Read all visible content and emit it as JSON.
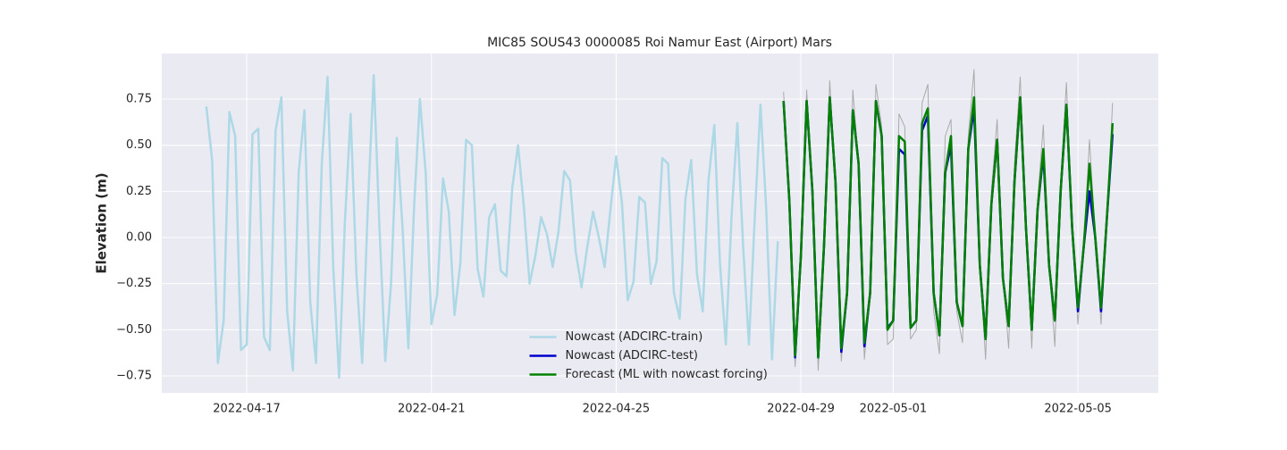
{
  "chart_data": {
    "type": "line",
    "title": "MIC85 SOUS43 0000085 Roi Namur East (Airport) Mars",
    "y_label": "Elevation (m)",
    "xlim": [
      19097.16,
      19118.74
    ],
    "ylim": [
      -0.842,
      0.997
    ],
    "xticks": [
      {
        "value": 19099,
        "label": "2022-04-17"
      },
      {
        "value": 19103,
        "label": "2022-04-21"
      },
      {
        "value": 19107,
        "label": "2022-04-25"
      },
      {
        "value": 19111,
        "label": "2022-04-29"
      },
      {
        "value": 19113,
        "label": "2022-05-01"
      },
      {
        "value": 19117,
        "label": "2022-05-05"
      }
    ],
    "yticks": [
      {
        "value": 0.75,
        "label": "0.75"
      },
      {
        "value": 0.5,
        "label": "0.50"
      },
      {
        "value": 0.25,
        "label": "0.25"
      },
      {
        "value": 0,
        "label": "0.00"
      },
      {
        "value": -0.25,
        "label": "−0.25"
      },
      {
        "value": -0.5,
        "label": "−0.50"
      },
      {
        "value": -0.75,
        "label": "−0.75"
      }
    ],
    "grid": true,
    "legend": "lower center",
    "series": [
      {
        "color": "#aaaaaa",
        "width": 1,
        "x": [
          19110.625,
          19110.75,
          19110.875,
          19111,
          19111.125,
          19111.25,
          19111.375,
          19111.5,
          19111.625,
          19111.75,
          19111.875,
          19112,
          19112.125,
          19112.25,
          19112.375,
          19112.5,
          19112.625,
          19112.75,
          19112.875,
          19113,
          19113.125,
          19113.25,
          19113.375,
          19113.5,
          19113.625,
          19113.75,
          19113.875,
          19114,
          19114.125,
          19114.25,
          19114.375,
          19114.5,
          19114.625,
          19114.75,
          19114.875,
          19115,
          19115.125,
          19115.25,
          19115.375,
          19115.5,
          19115.625,
          19115.75,
          19115.875,
          19116,
          19116.125,
          19116.25,
          19116.375,
          19116.5,
          19116.625,
          19116.75,
          19116.875,
          19117,
          19117.125,
          19117.25,
          19117.375,
          19117.5,
          19117.625,
          19117.75
        ],
        "values": [
          0.79,
          0.2,
          -0.7,
          -0.1,
          0.8,
          0.25,
          -0.72,
          -0.05,
          0.85,
          0.3,
          -0.67,
          -0.3,
          0.8,
          0.4,
          -0.66,
          -0.3,
          0.83,
          0.6,
          -0.58,
          -0.55,
          0.67,
          0.6,
          -0.55,
          -0.5,
          0.73,
          0.83,
          -0.4,
          -0.63,
          0.55,
          0.64,
          -0.4,
          -0.57,
          0.55,
          0.91,
          -0.15,
          -0.66,
          0.25,
          0.64,
          -0.22,
          -0.6,
          0.4,
          0.87,
          0.05,
          -0.6,
          0.2,
          0.61,
          -0.15,
          -0.59,
          0.3,
          0.84,
          0.05,
          -0.47,
          -0.05,
          0.53,
          0.0,
          -0.47,
          0.1,
          0.73
        ]
      },
      {
        "name": "Nowcast (ADCIRC-train)",
        "color": "#add8e6",
        "width": 2.5,
        "x": [
          19098.125,
          19098.25,
          19098.375,
          19098.5,
          19098.625,
          19098.75,
          19098.875,
          19099,
          19099.125,
          19099.25,
          19099.375,
          19099.5,
          19099.625,
          19099.75,
          19099.875,
          19100,
          19100.125,
          19100.25,
          19100.375,
          19100.5,
          19100.625,
          19100.75,
          19100.875,
          19101,
          19101.125,
          19101.25,
          19101.375,
          19101.5,
          19101.625,
          19101.75,
          19101.875,
          19102,
          19102.125,
          19102.25,
          19102.375,
          19102.5,
          19102.625,
          19102.75,
          19102.875,
          19103,
          19103.125,
          19103.25,
          19103.375,
          19103.5,
          19103.625,
          19103.75,
          19103.875,
          19104,
          19104.125,
          19104.25,
          19104.375,
          19104.5,
          19104.625,
          19104.75,
          19104.875,
          19105,
          19105.125,
          19105.25,
          19105.375,
          19105.5,
          19105.625,
          19105.75,
          19105.875,
          19106,
          19106.125,
          19106.25,
          19106.375,
          19106.5,
          19106.625,
          19106.75,
          19106.875,
          19107,
          19107.125,
          19107.25,
          19107.375,
          19107.5,
          19107.625,
          19107.75,
          19107.875,
          19108,
          19108.125,
          19108.25,
          19108.375,
          19108.5,
          19108.625,
          19108.75,
          19108.875,
          19109,
          19109.125,
          19109.25,
          19109.375,
          19109.5,
          19109.625,
          19109.75,
          19109.875,
          19110,
          19110.125,
          19110.25,
          19110.375,
          19110.5
        ],
        "values": [
          0.71,
          0.42,
          -0.68,
          -0.45,
          0.68,
          0.55,
          -0.61,
          -0.58,
          0.56,
          0.59,
          -0.54,
          -0.61,
          0.58,
          0.76,
          -0.4,
          -0.72,
          0.35,
          0.69,
          -0.35,
          -0.68,
          0.4,
          0.87,
          -0.17,
          -0.76,
          0.08,
          0.67,
          -0.2,
          -0.68,
          0.18,
          0.88,
          0.05,
          -0.67,
          -0.25,
          0.54,
          0.05,
          -0.6,
          0.17,
          0.75,
          0.35,
          -0.47,
          -0.31,
          0.32,
          0.14,
          -0.42,
          -0.14,
          0.53,
          0.5,
          -0.17,
          -0.32,
          0.11,
          0.18,
          -0.18,
          -0.21,
          0.27,
          0.5,
          0.17,
          -0.25,
          -0.1,
          0.11,
          0.02,
          -0.16,
          0.03,
          0.36,
          0.31,
          -0.08,
          -0.27,
          -0.05,
          0.14,
          0.0,
          -0.16,
          0.15,
          0.44,
          0.19,
          -0.34,
          -0.24,
          0.22,
          0.19,
          -0.25,
          -0.13,
          0.43,
          0.4,
          -0.3,
          -0.44,
          0.21,
          0.42,
          -0.2,
          -0.4,
          0.31,
          0.61,
          -0.15,
          -0.58,
          0.12,
          0.62,
          -0.05,
          -0.58,
          0.1,
          0.72,
          0.15,
          -0.66,
          -0.02
        ]
      },
      {
        "name": "Nowcast (ADCIRC-test)",
        "color": "#0000cd",
        "width": 2.5,
        "x": [
          19110.625,
          19110.75,
          19110.875,
          19111,
          19111.125,
          19111.25,
          19111.375,
          19111.5,
          19111.625,
          19111.75,
          19111.875,
          19112,
          19112.125,
          19112.25,
          19112.375,
          19112.5,
          19112.625,
          19112.75,
          19112.875,
          19113,
          19113.125,
          19113.25,
          19113.375,
          19113.5,
          19113.625,
          19113.75,
          19113.875,
          19114,
          19114.125,
          19114.25,
          19114.375,
          19114.5,
          19114.625,
          19114.75,
          19114.875,
          19115,
          19115.125,
          19115.25,
          19115.375,
          19115.5,
          19115.625,
          19115.75,
          19115.875,
          19116,
          19116.125,
          19116.25,
          19116.375,
          19116.5,
          19116.625,
          19116.75,
          19116.875,
          19117,
          19117.125,
          19117.25,
          19117.375,
          19117.5,
          19117.625,
          19117.75
        ],
        "values": [
          0.74,
          0.2,
          -0.65,
          -0.1,
          0.74,
          0.25,
          -0.65,
          -0.05,
          0.76,
          0.3,
          -0.62,
          -0.3,
          0.69,
          0.4,
          -0.59,
          -0.3,
          0.74,
          0.55,
          -0.49,
          -0.45,
          0.48,
          0.45,
          -0.49,
          -0.45,
          0.58,
          0.66,
          -0.3,
          -0.53,
          0.35,
          0.5,
          -0.35,
          -0.48,
          0.48,
          0.7,
          -0.15,
          -0.55,
          0.18,
          0.53,
          -0.22,
          -0.48,
          0.3,
          0.76,
          0.05,
          -0.5,
          0.15,
          0.45,
          -0.15,
          -0.45,
          0.25,
          0.72,
          0.05,
          -0.4,
          -0.05,
          0.25,
          0.0,
          -0.4,
          0.1,
          0.56
        ]
      },
      {
        "name": "Forecast (ML with nowcast forcing)",
        "color": "#008000",
        "width": 2.5,
        "x": [
          19110.625,
          19110.75,
          19110.875,
          19111,
          19111.125,
          19111.25,
          19111.375,
          19111.5,
          19111.625,
          19111.75,
          19111.875,
          19112,
          19112.125,
          19112.25,
          19112.375,
          19112.5,
          19112.625,
          19112.75,
          19112.875,
          19113,
          19113.125,
          19113.25,
          19113.375,
          19113.5,
          19113.625,
          19113.75,
          19113.875,
          19114,
          19114.125,
          19114.25,
          19114.375,
          19114.5,
          19114.625,
          19114.75,
          19114.875,
          19115,
          19115.125,
          19115.25,
          19115.375,
          19115.5,
          19115.625,
          19115.75,
          19115.875,
          19116,
          19116.125,
          19116.25,
          19116.375,
          19116.5,
          19116.625,
          19116.75,
          19116.875,
          19117,
          19117.125,
          19117.25,
          19117.375,
          19117.5,
          19117.625,
          19117.75
        ],
        "values": [
          0.74,
          0.2,
          -0.64,
          -0.1,
          0.74,
          0.25,
          -0.65,
          -0.05,
          0.76,
          0.3,
          -0.6,
          -0.3,
          0.69,
          0.4,
          -0.57,
          -0.3,
          0.74,
          0.55,
          -0.5,
          -0.45,
          0.55,
          0.52,
          -0.49,
          -0.45,
          0.62,
          0.7,
          -0.3,
          -0.53,
          0.35,
          0.55,
          -0.35,
          -0.48,
          0.48,
          0.76,
          -0.15,
          -0.55,
          0.18,
          0.53,
          -0.22,
          -0.48,
          0.3,
          0.76,
          0.05,
          -0.5,
          0.15,
          0.48,
          -0.15,
          -0.45,
          0.25,
          0.72,
          0.05,
          -0.38,
          -0.05,
          0.4,
          0.0,
          -0.38,
          0.1,
          0.62
        ]
      }
    ]
  }
}
